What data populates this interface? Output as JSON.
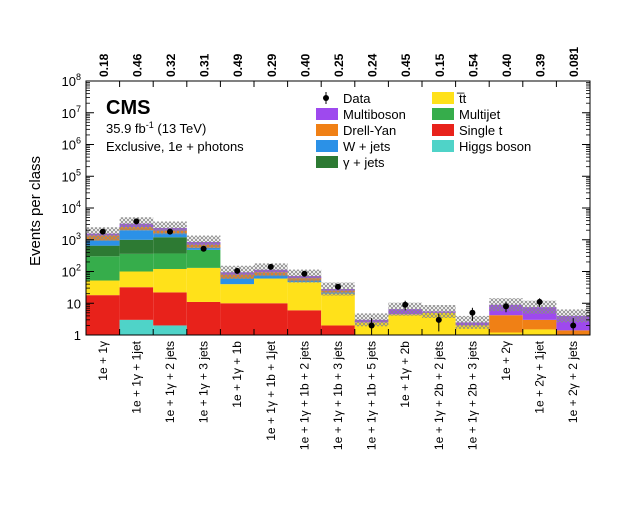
{
  "chart_data": {
    "type": "bar",
    "stacked": true,
    "yscale": "log",
    "ylabel": "Events per class",
    "ylim": [
      1,
      100000000
    ],
    "ytick_labels": [
      "1",
      "10",
      "10^2",
      "10^3",
      "10^4",
      "10^5",
      "10^6",
      "10^7",
      "10^8"
    ],
    "title": {
      "experiment": "CMS",
      "lumi_value": "35.9 fb",
      "lumi_exp": "-1",
      "lumi_energy": " (13 TeV)",
      "subtitle": "Exclusive, 1e + photons"
    },
    "categories": [
      "1e + 1γ",
      "1e + 1γ + 1jet",
      "1e + 1γ + 2 jets",
      "1e + 1γ + 3 jets",
      "1e + 1γ + 1b",
      "1e + 1γ + 1b + 1jet",
      "1e + 1γ + 1b + 2 jets",
      "1e + 1γ + 1b + 3 jets",
      "1e + 1γ + 1b + 5 jets",
      "1e + 1γ + 2b",
      "1e + 1γ + 2b + 2 jets",
      "1e + 1γ + 2b + 3 jets",
      "1e + 2γ",
      "1e + 2γ + 1jet",
      "1e + 2γ + 2 jets"
    ],
    "top_labels": [
      "0.18",
      "0.46",
      "0.32",
      "0.31",
      "0.49",
      "0.29",
      "0.40",
      "0.25",
      "0.24",
      "0.45",
      "0.15",
      "0.54",
      "0.40",
      "0.39",
      "0.081"
    ],
    "legend": [
      {
        "name": "Data",
        "kind": "marker"
      },
      {
        "name": "t̅t",
        "kind": "box",
        "color": "#ffe11a"
      },
      {
        "name": "Multiboson",
        "kind": "box",
        "color": "#9e49ee"
      },
      {
        "name": "Multijet",
        "kind": "box",
        "color": "#36ad4b"
      },
      {
        "name": "Drell-Yan",
        "kind": "box",
        "color": "#f08015"
      },
      {
        "name": "Single t",
        "kind": "box",
        "color": "#e8221b"
      },
      {
        "name": "W + jets",
        "kind": "box",
        "color": "#2b91e7"
      },
      {
        "name": "Higgs boson",
        "kind": "box",
        "color": "#4fd3c8"
      },
      {
        "name": "γ + jets",
        "kind": "box",
        "color": "#2d7a33"
      }
    ],
    "stack_order": [
      "Higgs boson",
      "Single t",
      "t̅t",
      "Multijet",
      "γ + jets",
      "W + jets",
      "Drell-Yan",
      "Multiboson"
    ],
    "series": [
      {
        "name": "Higgs boson",
        "color": "#4fd3c8",
        "values": [
          0,
          3,
          2,
          0,
          0,
          0,
          0,
          0,
          0,
          0,
          0,
          0,
          0,
          0,
          0
        ]
      },
      {
        "name": "Single t",
        "color": "#e8221b",
        "values": [
          18,
          29,
          20,
          11,
          10,
          10,
          6,
          2,
          0,
          0,
          0,
          0,
          0,
          0,
          0
        ]
      },
      {
        "name": "t̅t",
        "color": "#ffe11a",
        "values": [
          34,
          68,
          98,
          119,
          30,
          50,
          40,
          18,
          2.5,
          4.5,
          5,
          2,
          1.2,
          1.5,
          0
        ]
      },
      {
        "name": "Multijet",
        "color": "#36ad4b",
        "values": [
          250,
          260,
          250,
          350,
          0,
          0,
          0,
          0,
          0,
          0,
          0,
          0,
          0,
          0,
          0
        ]
      },
      {
        "name": "γ + jets",
        "color": "#2d7a33",
        "values": [
          350,
          640,
          830,
          0,
          0,
          0,
          0,
          0,
          0,
          0,
          0,
          0,
          0,
          0,
          0
        ]
      },
      {
        "name": "W + jets",
        "color": "#2b91e7",
        "values": [
          300,
          1000,
          400,
          80,
          20,
          15,
          6,
          2,
          0,
          0,
          0,
          0,
          0,
          0,
          0
        ]
      },
      {
        "name": "Drell-Yan",
        "color": "#f08015",
        "values": [
          400,
          500,
          350,
          140,
          20,
          20,
          10,
          3,
          0,
          0,
          0,
          0,
          3,
          1.5,
          1.4
        ]
      },
      {
        "name": "Multiboson",
        "color": "#9e49ee",
        "values": [
          200,
          700,
          400,
          150,
          15,
          18,
          10,
          3,
          0.5,
          2,
          0.5,
          0.5,
          4.8,
          4.5,
          2.6
        ]
      }
    ],
    "totals_uncertainty_factor": 1.6,
    "data": [
      1800,
      3800,
      1800,
      520,
      105,
      140,
      85,
      33,
      2,
      9,
      3,
      5,
      8,
      11,
      2
    ],
    "data_err": [
      45,
      62,
      45,
      23,
      10,
      12,
      9,
      6,
      1.4,
      3,
      1.7,
      2.2,
      2.8,
      3.3,
      1.4
    ]
  }
}
